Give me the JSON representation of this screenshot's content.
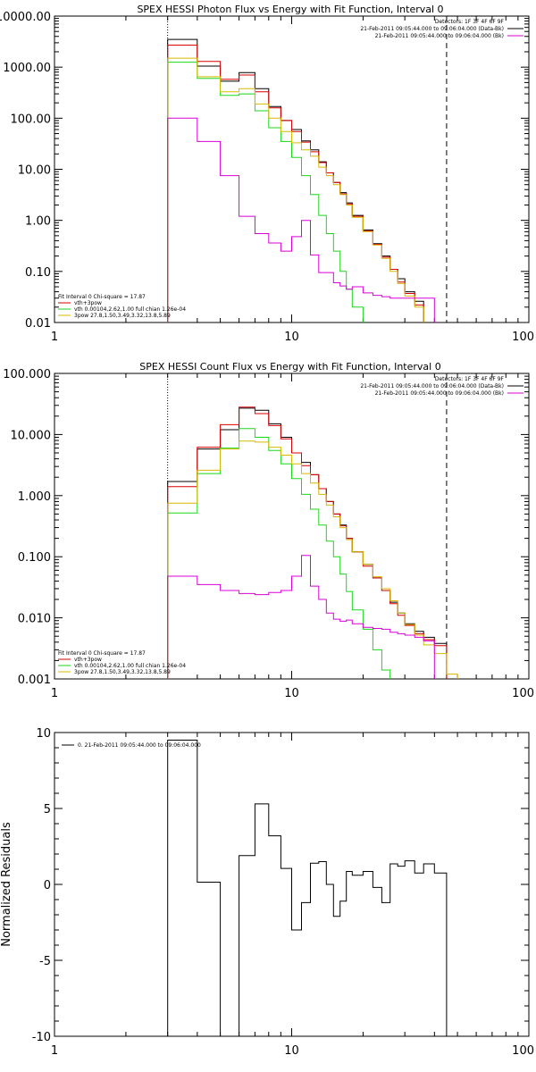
{
  "colors": {
    "black": "#000000",
    "red": "#d80000",
    "green": "#18d818",
    "yellow": "#d8b800",
    "magenta": "#d800d8",
    "orange": "#e08a00"
  },
  "chart_data": [
    {
      "type": "line",
      "title": "SPEX HESSI Photon Flux vs Energy with Fit Function, Interval 0",
      "xscale": "log",
      "yscale": "log",
      "xlim": [
        1,
        100
      ],
      "ylim": [
        0.01,
        10000
      ],
      "xticks": [
        {
          "value": 1,
          "label": "1"
        },
        {
          "value": 10,
          "label": "10"
        },
        {
          "value": 100,
          "label": "100"
        }
      ],
      "yticks": [
        {
          "value": 10000,
          "label": "10000.00"
        },
        {
          "value": 1000,
          "label": "1000.00"
        },
        {
          "value": 100,
          "label": "100.00"
        },
        {
          "value": 10,
          "label": "10.00"
        },
        {
          "value": 1,
          "label": "1.00"
        },
        {
          "value": 0.1,
          "label": "0.10"
        },
        {
          "value": 0.01,
          "label": "0.01"
        }
      ],
      "vlines": [
        {
          "x": 3,
          "style": "dotted"
        },
        {
          "x": 45,
          "style": "dashed"
        }
      ],
      "legend_top_right": [
        {
          "text": "Detectors: 1F 3F 4F 6F 9F",
          "line": false
        },
        {
          "text": "21-Feb-2011 09:05:44.000 to 09:06:04.000 (Data-Bk)",
          "color": "black",
          "line": true
        },
        {
          "text": "21-Feb-2011 09:05:44.000 to 09:06:04.000 (Bk)",
          "color": "magenta",
          "line": true
        }
      ],
      "legend_bottom_left": [
        {
          "text": "Fit Interval 0    Chi-square = 17.87",
          "line": false
        },
        {
          "text": "vth+3pow",
          "color": "red",
          "line": true
        },
        {
          "text": "vth 0.00104,2.62,1.00   full chian 1.26e-04",
          "color": "green",
          "line": true
        },
        {
          "text": "3pow 27.8,1.50,3.49,3.32,13.8,5.89",
          "color": "yellow",
          "line": true
        }
      ],
      "edges": [
        3,
        4,
        5,
        6,
        7,
        8,
        9,
        10,
        11,
        12,
        13,
        14,
        15,
        16,
        17,
        18,
        20,
        22,
        24,
        26,
        28,
        30,
        33,
        36,
        40,
        45
      ],
      "series": [
        {
          "color": "black",
          "values": [
            3500,
            1050,
            530,
            780,
            380,
            170,
            90,
            60,
            36,
            24,
            14,
            8.5,
            5.5,
            3.5,
            2.2,
            1.25,
            0.65,
            0.35,
            0.2,
            0.11,
            0.072,
            0.04,
            0.026,
            null,
            null
          ]
        },
        {
          "color": "red",
          "values": [
            2700,
            1300,
            580,
            700,
            330,
            160,
            90,
            55,
            34,
            22,
            13.5,
            8.5,
            5.5,
            3.3,
            2.1,
            1.2,
            0.62,
            0.34,
            0.19,
            0.11,
            0.062,
            0.037,
            0.022,
            null,
            null
          ]
        },
        {
          "color": "green",
          "values": [
            1250,
            600,
            280,
            300,
            140,
            65,
            35,
            17,
            7.5,
            3.2,
            1.25,
            0.55,
            0.25,
            0.1,
            0.045,
            0.02,
            null,
            null,
            null,
            null,
            null,
            null,
            null,
            null,
            null
          ]
        },
        {
          "color": "yellow",
          "values": [
            1500,
            650,
            330,
            380,
            190,
            100,
            55,
            33,
            24,
            18,
            11,
            7.5,
            5,
            3.2,
            2,
            1.15,
            0.6,
            0.33,
            0.18,
            0.1,
            0.058,
            0.033,
            0.02,
            null,
            null
          ]
        },
        {
          "color": "magenta",
          "values": [
            100,
            35,
            7.5,
            1.2,
            0.55,
            0.36,
            0.25,
            0.48,
            1.0,
            0.21,
            0.095,
            0.095,
            0.06,
            0.052,
            0.045,
            0.05,
            0.038,
            0.034,
            0.032,
            0.03,
            0.03,
            0.03,
            0.03,
            0.03,
            null
          ]
        }
      ]
    },
    {
      "type": "line",
      "title": "SPEX HESSI Count Flux vs Energy with Fit Function, Interval 0",
      "xscale": "log",
      "yscale": "log",
      "xlim": [
        1,
        100
      ],
      "ylim": [
        0.001,
        100
      ],
      "xticks": [
        {
          "value": 1,
          "label": "1"
        },
        {
          "value": 10,
          "label": "10"
        },
        {
          "value": 100,
          "label": "100"
        }
      ],
      "yticks": [
        {
          "value": 100,
          "label": "100.000"
        },
        {
          "value": 10,
          "label": "10.000"
        },
        {
          "value": 1,
          "label": "1.000"
        },
        {
          "value": 0.1,
          "label": "0.100"
        },
        {
          "value": 0.01,
          "label": "0.010"
        },
        {
          "value": 0.001,
          "label": "0.001"
        }
      ],
      "vlines": [
        {
          "x": 3,
          "style": "dotted"
        },
        {
          "x": 45,
          "style": "dashed"
        }
      ],
      "legend_top_right": [
        {
          "text": "Detectors: 1F 3F 4F 6F 9F",
          "line": false
        },
        {
          "text": "21-Feb-2011 09:05:44.000 to 09:06:04.000 (Data-Bk)",
          "color": "black",
          "line": true
        },
        {
          "text": "21-Feb-2011 09:05:44.000 to 09:06:04.000 (Bk)",
          "color": "magenta",
          "line": true
        }
      ],
      "legend_bottom_left": [
        {
          "text": "Fit Interval 0    Chi-square = 17.87",
          "line": false
        },
        {
          "text": "vth+3pow",
          "color": "red",
          "line": true
        },
        {
          "text": "vth 0.00104,2.62,1.00   full chian 1.26e-04",
          "color": "green",
          "line": true
        },
        {
          "text": "3pow 27.8,1.50,3.49,3.32,13.8,5.89",
          "color": "yellow",
          "line": true
        }
      ],
      "edges": [
        3,
        4,
        5,
        6,
        7,
        8,
        9,
        10,
        11,
        12,
        13,
        14,
        15,
        16,
        17,
        18,
        20,
        22,
        24,
        26,
        28,
        30,
        33,
        36,
        40,
        45,
        50
      ],
      "series": [
        {
          "color": "black",
          "values": [
            1.7,
            5.8,
            12,
            27,
            25,
            15,
            9,
            5,
            3.5,
            2.2,
            1.3,
            0.8,
            0.5,
            0.33,
            0.2,
            0.12,
            0.075,
            0.045,
            0.028,
            0.018,
            0.012,
            0.008,
            0.006,
            0.0048,
            0.0038,
            null
          ]
        },
        {
          "color": "red",
          "values": [
            1.4,
            6.2,
            14.5,
            28,
            22,
            14,
            8.5,
            5,
            3.1,
            2.2,
            1.3,
            0.8,
            0.5,
            0.32,
            0.2,
            0.12,
            0.07,
            0.045,
            0.028,
            0.017,
            0.011,
            0.0075,
            0.0055,
            0.0044,
            0.0035,
            null
          ]
        },
        {
          "color": "green",
          "values": [
            0.52,
            2.3,
            6,
            12.5,
            9,
            5.5,
            3.3,
            1.9,
            1.05,
            0.6,
            0.33,
            0.18,
            0.1,
            0.052,
            0.027,
            0.0135,
            0.0065,
            0.003,
            0.0014,
            null,
            null,
            null,
            null,
            null,
            null,
            null
          ]
        },
        {
          "color": "yellow",
          "values": [
            0.75,
            2.6,
            5.8,
            7.8,
            7.5,
            6.2,
            4.6,
            3.3,
            2.3,
            1.6,
            1.05,
            0.7,
            0.45,
            0.3,
            0.19,
            0.12,
            0.075,
            0.047,
            0.03,
            0.019,
            0.012,
            0.0078,
            0.0052,
            0.0036,
            0.0026,
            0.0012
          ]
        },
        {
          "color": "magenta",
          "values": [
            0.048,
            0.035,
            0.028,
            0.025,
            0.024,
            0.026,
            0.028,
            0.048,
            0.105,
            0.033,
            0.02,
            0.012,
            0.0095,
            0.0088,
            0.0092,
            0.008,
            0.007,
            0.0067,
            0.0065,
            0.0058,
            0.0055,
            0.0052,
            0.0048,
            0.0042,
            null,
            null
          ]
        }
      ]
    },
    {
      "type": "line",
      "title": "",
      "ylabel": "Normalized Residuals",
      "xscale": "log",
      "yscale": "linear",
      "xlim": [
        1,
        100
      ],
      "ylim": [
        -10,
        10
      ],
      "xticks": [
        {
          "value": 1,
          "label": "1"
        },
        {
          "value": 10,
          "label": "10"
        },
        {
          "value": 100,
          "label": "100"
        }
      ],
      "yticks": [
        {
          "value": 10,
          "label": "10"
        },
        {
          "value": 5,
          "label": "5"
        },
        {
          "value": 0,
          "label": "0"
        },
        {
          "value": -5,
          "label": "-5"
        },
        {
          "value": -10,
          "label": "-10"
        }
      ],
      "vlines": [],
      "legend_top_left": [
        {
          "text": "0. 21-Feb-2011 09:05:44.000 to 09:06:04.000",
          "color": "black",
          "line": true
        }
      ],
      "edges": [
        3,
        4,
        5,
        6,
        7,
        8,
        9,
        10,
        11,
        12,
        13,
        14,
        15,
        16,
        17,
        18,
        20,
        22,
        24,
        26,
        28,
        30,
        33,
        36,
        40,
        45
      ],
      "series": [
        {
          "color": "black",
          "values": [
            9.5,
            0.15,
            -10.0,
            1.9,
            5.3,
            3.2,
            1.05,
            -3.0,
            -1.2,
            1.4,
            1.5,
            0.0,
            -2.1,
            -1.1,
            0.85,
            0.6,
            0.85,
            -0.2,
            -1.2,
            1.35,
            1.2,
            1.55,
            0.75,
            1.35,
            0.75
          ]
        }
      ]
    }
  ]
}
